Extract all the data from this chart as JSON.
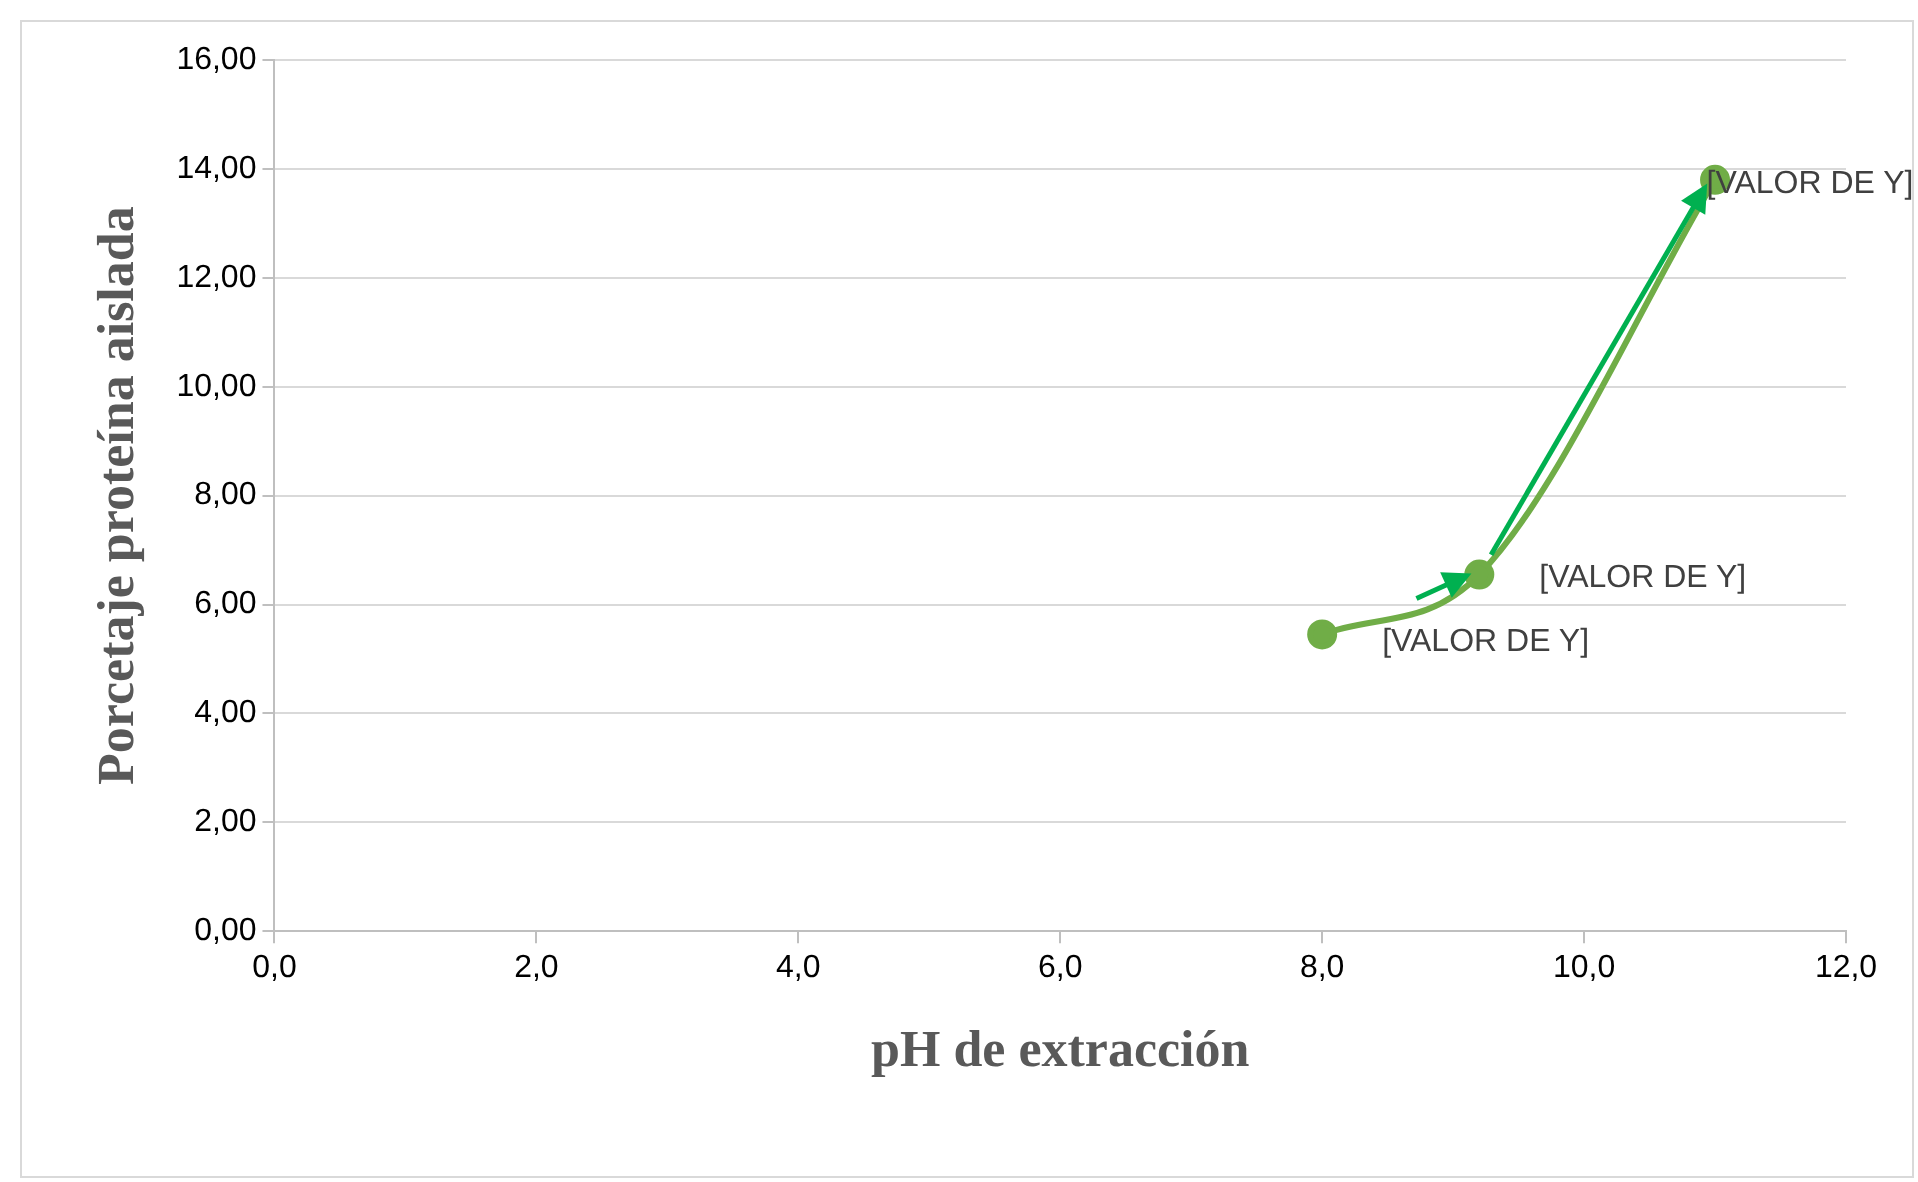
{
  "chart_data": {
    "type": "line",
    "xlabel": "pH de extracción",
    "ylabel": "Porcetaje proteína aislada",
    "x": [
      8.0,
      9.2,
      11.0
    ],
    "series": [
      {
        "color": "#70ad47",
        "values": [
          5.45,
          6.55,
          13.8
        ],
        "value_labels": [
          "[VALOR DE Y]",
          "[VALOR DE Y]",
          "[VALOR DE Y]"
        ]
      }
    ],
    "xlim": [
      0,
      12
    ],
    "xticks": [
      {
        "value": 0,
        "label": "0,0"
      },
      {
        "value": 2,
        "label": "2,0"
      },
      {
        "value": 4,
        "label": "4,0"
      },
      {
        "value": 6,
        "label": "6,0"
      },
      {
        "value": 8,
        "label": "8,0"
      },
      {
        "value": 10,
        "label": "10,0"
      },
      {
        "value": 12,
        "label": "12,0"
      }
    ],
    "ylim": [
      0,
      16
    ],
    "yticks": [
      {
        "value": 0,
        "label": "0,00"
      },
      {
        "value": 2,
        "label": "2,00"
      },
      {
        "value": 4,
        "label": "4,00"
      },
      {
        "value": 6,
        "label": "6,00"
      },
      {
        "value": 8,
        "label": "8,00"
      },
      {
        "value": 10,
        "label": "10,00"
      },
      {
        "value": 12,
        "label": "12,00"
      },
      {
        "value": 14,
        "label": "14,00"
      },
      {
        "value": 16,
        "label": "16,00"
      }
    ],
    "grid": "y",
    "legend": false,
    "marker": "circle",
    "line_style": "solid"
  }
}
